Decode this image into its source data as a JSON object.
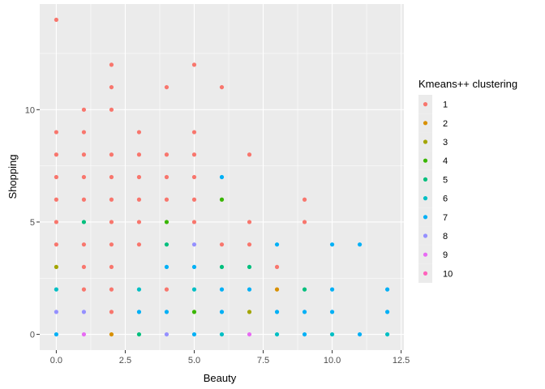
{
  "chart_data": {
    "type": "scatter",
    "title": "",
    "xlabel": "Beauty",
    "ylabel": "Shopping",
    "xlim": [
      -0.6,
      12.6
    ],
    "ylim": [
      -0.7,
      14.7
    ],
    "x_ticks": [
      0,
      2.5,
      5,
      7.5,
      10,
      12.5
    ],
    "x_tick_labels": [
      "0.0",
      "2.5",
      "5.0",
      "7.5",
      "10.0",
      "12.5"
    ],
    "y_ticks": [
      0,
      5,
      10
    ],
    "y_tick_labels": [
      "0",
      "5",
      "10"
    ],
    "grid": true,
    "legend_position": "right",
    "legend_title": "Kmeans++ clustering",
    "series": [
      {
        "name": "1",
        "color": "#F8766D",
        "points": [
          [
            0,
            14
          ],
          [
            0,
            9
          ],
          [
            0,
            8
          ],
          [
            0,
            7
          ],
          [
            0,
            6
          ],
          [
            0,
            5
          ],
          [
            0,
            4
          ],
          [
            1,
            10
          ],
          [
            1,
            9
          ],
          [
            1,
            8
          ],
          [
            1,
            7
          ],
          [
            1,
            6
          ],
          [
            1,
            4
          ],
          [
            1,
            3
          ],
          [
            1,
            2
          ],
          [
            2,
            12
          ],
          [
            2,
            11
          ],
          [
            2,
            10
          ],
          [
            2,
            8
          ],
          [
            2,
            7
          ],
          [
            2,
            6
          ],
          [
            2,
            5
          ],
          [
            2,
            4
          ],
          [
            2,
            3
          ],
          [
            2,
            2
          ],
          [
            2,
            1
          ],
          [
            3,
            9
          ],
          [
            3,
            8
          ],
          [
            3,
            7
          ],
          [
            3,
            6
          ],
          [
            3,
            5
          ],
          [
            3,
            4
          ],
          [
            4,
            11
          ],
          [
            4,
            8
          ],
          [
            4,
            7
          ],
          [
            4,
            6
          ],
          [
            4,
            2
          ],
          [
            5,
            12
          ],
          [
            5,
            9
          ],
          [
            5,
            8
          ],
          [
            5,
            7
          ],
          [
            5,
            6
          ],
          [
            5,
            5
          ],
          [
            6,
            11
          ],
          [
            6,
            4
          ],
          [
            7,
            8
          ],
          [
            7,
            5
          ],
          [
            7,
            4
          ],
          [
            8,
            3
          ],
          [
            9,
            6
          ],
          [
            9,
            5
          ]
        ]
      },
      {
        "name": "2",
        "color": "#D89000",
        "points": [
          [
            2,
            0
          ],
          [
            8,
            2
          ]
        ]
      },
      {
        "name": "3",
        "color": "#A3A500",
        "points": [
          [
            0,
            3
          ],
          [
            7,
            1
          ]
        ]
      },
      {
        "name": "4",
        "color": "#39B600",
        "points": [
          [
            4,
            5
          ],
          [
            5,
            1
          ],
          [
            6,
            6
          ]
        ]
      },
      {
        "name": "5",
        "color": "#00BF7D",
        "points": [
          [
            1,
            5
          ],
          [
            3,
            0
          ],
          [
            4,
            4
          ],
          [
            6,
            3
          ],
          [
            7,
            3
          ],
          [
            9,
            2
          ]
        ]
      },
      {
        "name": "6",
        "color": "#00BFC4",
        "points": [
          [
            0,
            2
          ],
          [
            3,
            2
          ],
          [
            5,
            2
          ],
          [
            6,
            0
          ],
          [
            8,
            0
          ],
          [
            10,
            0
          ],
          [
            12,
            0
          ]
        ]
      },
      {
        "name": "7",
        "color": "#00B0F6",
        "points": [
          [
            0,
            0
          ],
          [
            3,
            1
          ],
          [
            4,
            3
          ],
          [
            4,
            1
          ],
          [
            5,
            3
          ],
          [
            5,
            0
          ],
          [
            6,
            7
          ],
          [
            6,
            2
          ],
          [
            6,
            1
          ],
          [
            7,
            2
          ],
          [
            8,
            4
          ],
          [
            8,
            1
          ],
          [
            9,
            1
          ],
          [
            9,
            0
          ],
          [
            10,
            4
          ],
          [
            10,
            2
          ],
          [
            10,
            1
          ],
          [
            11,
            4
          ],
          [
            11,
            0
          ],
          [
            12,
            2
          ],
          [
            12,
            1
          ]
        ]
      },
      {
        "name": "8",
        "color": "#9590FF",
        "points": [
          [
            0,
            1
          ],
          [
            1,
            1
          ],
          [
            4,
            0
          ],
          [
            5,
            4
          ]
        ]
      },
      {
        "name": "9",
        "color": "#E76BF3",
        "points": [
          [
            1,
            0
          ],
          [
            7,
            0
          ]
        ]
      },
      {
        "name": "10",
        "color": "#FF62BC",
        "points": []
      }
    ]
  }
}
